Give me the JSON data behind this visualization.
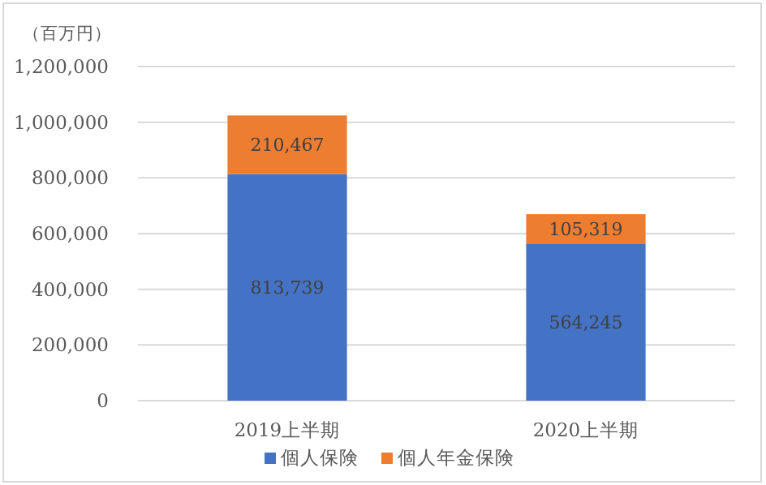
{
  "chart_data": {
    "type": "bar",
    "stacked": true,
    "ylabel": "（百万円）",
    "categories": [
      "2019上半期",
      "2020上半期"
    ],
    "series": [
      {
        "name": "個人保険",
        "color": "#4472c4",
        "values": [
          813739,
          564245
        ],
        "value_labels": [
          "813,739",
          "564,245"
        ]
      },
      {
        "name": "個人年金保険",
        "color": "#ed7d31",
        "values": [
          210467,
          105319
        ],
        "value_labels": [
          "210,467",
          "105,319"
        ]
      }
    ],
    "ylim": [
      0,
      1200000
    ],
    "yticks": [
      {
        "value": 0,
        "label": "0"
      },
      {
        "value": 200000,
        "label": "200,000"
      },
      {
        "value": 400000,
        "label": "400,000"
      },
      {
        "value": 600000,
        "label": "600,000"
      },
      {
        "value": 800000,
        "label": "800,000"
      },
      {
        "value": 1000000,
        "label": "1,000,000"
      },
      {
        "value": 1200000,
        "label": "1,200,000"
      }
    ],
    "grid": "y",
    "legend": "bottom"
  }
}
